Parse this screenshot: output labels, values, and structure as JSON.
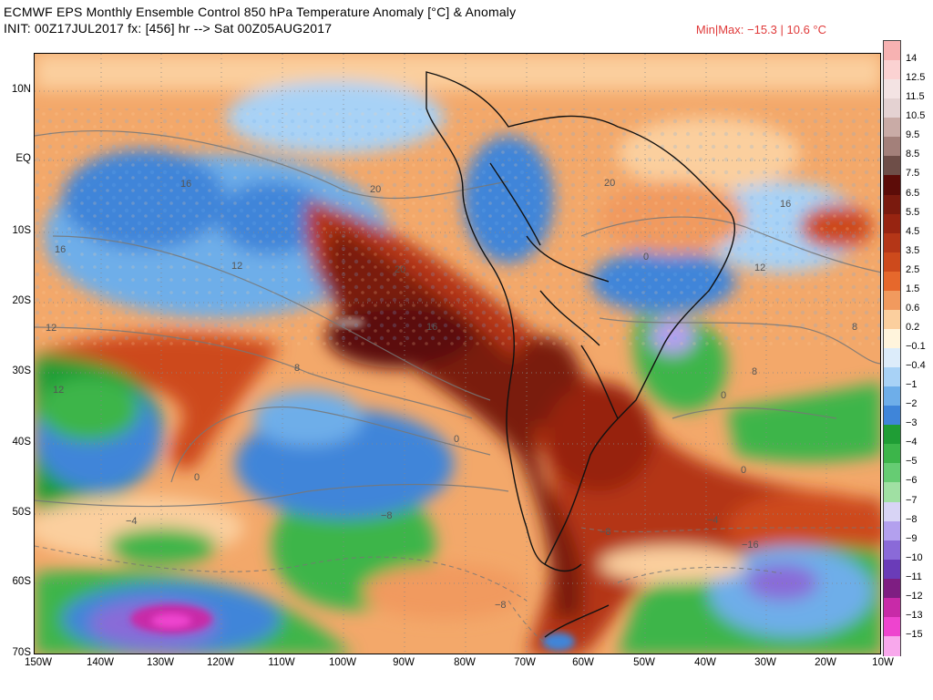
{
  "header": {
    "title_line1": "ECMWF EPS Monthly Ensemble Control 850 hPa Temperature Anomaly [°C] & Anomaly",
    "title_line2": "INIT: 00Z17JUL2017  fx: [456] hr --> Sat 00Z05AUG2017",
    "minmax": "Min|Max: −15.3 | 10.6 °C"
  },
  "axes": {
    "lat_labels": [
      "10N",
      "EQ",
      "10S",
      "20S",
      "30S",
      "40S",
      "50S",
      "60S",
      "70S"
    ],
    "lon_labels": [
      "150W",
      "140W",
      "130W",
      "120W",
      "110W",
      "100W",
      "90W",
      "80W",
      "70W",
      "60W",
      "50W",
      "40W",
      "30W",
      "20W",
      "10W"
    ]
  },
  "contour_labels": [
    "16",
    "20",
    "16",
    "12",
    "20",
    "12",
    "8",
    "20",
    "16",
    "12",
    "8",
    "16",
    "8",
    "12",
    "0",
    "0",
    "0",
    "0",
    "0",
    "−4",
    "−8",
    "−8",
    "−4",
    "−8",
    "−16"
  ],
  "colorbar": {
    "labels": [
      "14",
      "12.5",
      "11.5",
      "10.5",
      "9.5",
      "8.5",
      "7.5",
      "6.5",
      "5.5",
      "4.5",
      "3.5",
      "2.5",
      "1.5",
      "0.6",
      "0.2",
      "−0.1",
      "−0.4",
      "−1",
      "−2",
      "−3",
      "−4",
      "−5",
      "−6",
      "−7",
      "−8",
      "−9",
      "−10",
      "−11",
      "−12",
      "−13",
      "−15"
    ],
    "colors": [
      "#f7b2b2",
      "#fbd2d2",
      "#f3e3e3",
      "#e4d2d2",
      "#c9aba6",
      "#a3807a",
      "#6e4e48",
      "#5c0c08",
      "#7a1a0e",
      "#972411",
      "#b43617",
      "#cd4a1c",
      "#e6682c",
      "#f19a5e",
      "#fbcf9e",
      "#fff4dc",
      "#dcecfa",
      "#a8d2f6",
      "#6eaee9",
      "#3f85d9",
      "#1f9d35",
      "#3cb54a",
      "#66cc73",
      "#a0e0a3",
      "#d8d4f5",
      "#b3a0ee",
      "#8a6ad8",
      "#6a3cb8",
      "#7e1e82",
      "#c82aa8",
      "#ee44cf",
      "#f8a8ec"
    ]
  }
}
